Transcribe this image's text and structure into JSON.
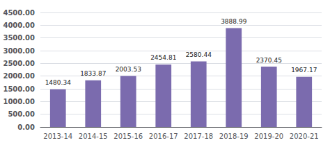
{
  "chart_data": {
    "type": "bar",
    "categories": [
      "2013-14",
      "2014-15",
      "2015-16",
      "2016-17",
      "2017-18",
      "2018-19",
      "2019-20",
      "2020-21"
    ],
    "values": [
      1480.34,
      1833.87,
      2003.53,
      2454.81,
      2580.44,
      3888.99,
      2370.45,
      1967.17
    ],
    "color": "#7B6BAE",
    "ylim": [
      0,
      4500
    ],
    "yticks": [
      {
        "value": 0,
        "label": "0.00"
      },
      {
        "value": 500,
        "label": "500.00"
      },
      {
        "value": 1000,
        "label": "1000.00"
      },
      {
        "value": 1500,
        "label": "1500.00"
      },
      {
        "value": 2000,
        "label": "2000.00"
      },
      {
        "value": 2500,
        "label": "2500.00"
      },
      {
        "value": 3000,
        "label": "3000.00"
      },
      {
        "value": 3500,
        "label": "3500.00"
      },
      {
        "value": 4000,
        "label": "4000.00"
      },
      {
        "value": 4500,
        "label": "4500.00"
      }
    ],
    "grid": true,
    "data_labels": true
  }
}
